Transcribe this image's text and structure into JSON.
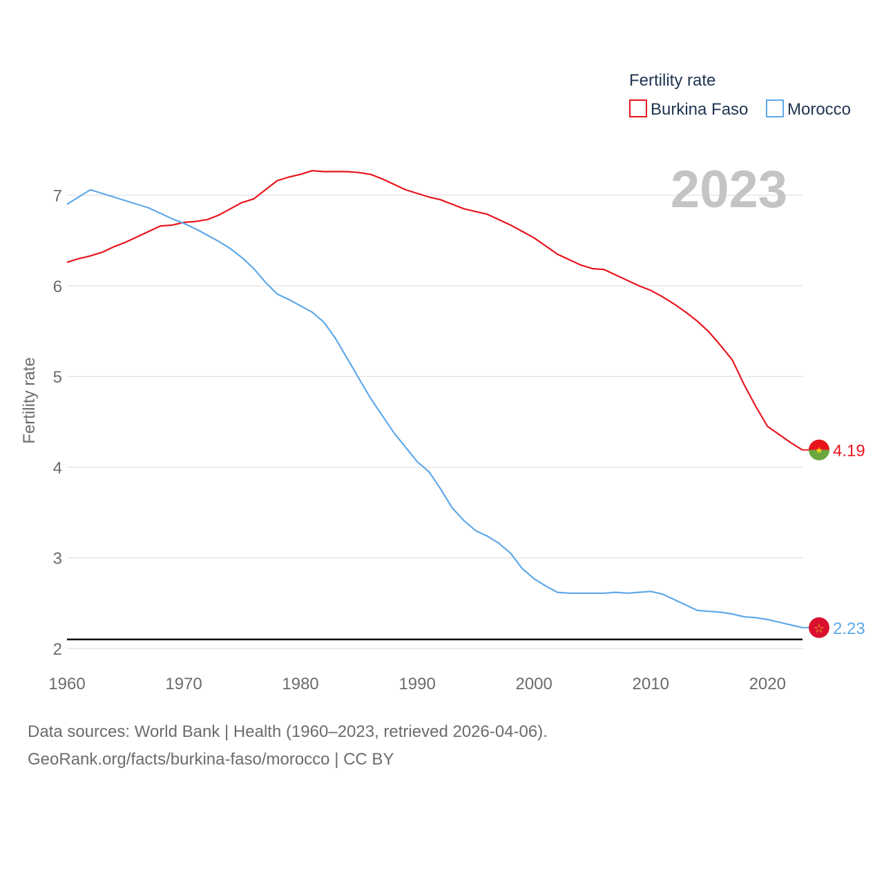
{
  "chart_data": {
    "type": "line",
    "ylabel": "Fertility rate",
    "xlim": [
      1960,
      2023
    ],
    "ylim": [
      2,
      7.5
    ],
    "x_ticks": [
      1960,
      1970,
      1980,
      1990,
      2000,
      2010,
      2020
    ],
    "y_ticks": [
      2,
      3,
      4,
      5,
      6,
      7
    ],
    "year_watermark": "2023",
    "legend": {
      "title": "Fertility rate",
      "position": "top-right"
    },
    "reference_line": 2.1,
    "colors": {
      "Burkina Faso": "#e8141c",
      "Morocco": "#5ea8e8"
    },
    "x": [
      1960,
      1961,
      1962,
      1963,
      1964,
      1965,
      1966,
      1967,
      1968,
      1969,
      1970,
      1971,
      1972,
      1973,
      1974,
      1975,
      1976,
      1977,
      1978,
      1979,
      1980,
      1981,
      1982,
      1983,
      1984,
      1985,
      1986,
      1987,
      1988,
      1989,
      1990,
      1991,
      1992,
      1993,
      1994,
      1995,
      1996,
      1997,
      1998,
      1999,
      2000,
      2001,
      2002,
      2003,
      2004,
      2005,
      2006,
      2007,
      2008,
      2009,
      2010,
      2011,
      2012,
      2013,
      2014,
      2015,
      2016,
      2017,
      2018,
      2019,
      2020,
      2021,
      2022,
      2023
    ],
    "series": [
      {
        "name": "Burkina Faso",
        "end_label": "4.19",
        "values": [
          6.26,
          6.3,
          6.33,
          6.37,
          6.43,
          6.48,
          6.54,
          6.6,
          6.66,
          6.67,
          6.7,
          6.71,
          6.73,
          6.78,
          6.85,
          6.92,
          6.96,
          7.06,
          7.16,
          7.2,
          7.23,
          7.27,
          7.26,
          7.26,
          7.26,
          7.25,
          7.23,
          7.18,
          7.12,
          7.06,
          7.02,
          6.98,
          6.95,
          6.9,
          6.85,
          6.82,
          6.79,
          6.73,
          6.67,
          6.6,
          6.53,
          6.44,
          6.35,
          6.29,
          6.23,
          6.19,
          6.18,
          6.12,
          6.06,
          6.0,
          5.95,
          5.88,
          5.8,
          5.71,
          5.61,
          5.49,
          5.34,
          5.18,
          4.91,
          4.67,
          4.45,
          4.36,
          4.27,
          4.19
        ]
      },
      {
        "name": "Morocco",
        "end_label": "2.23",
        "values": [
          6.9,
          6.98,
          7.06,
          7.02,
          6.98,
          6.94,
          6.9,
          6.86,
          6.8,
          6.74,
          6.69,
          6.63,
          6.56,
          6.49,
          6.41,
          6.31,
          6.19,
          6.04,
          5.91,
          5.85,
          5.78,
          5.71,
          5.6,
          5.42,
          5.2,
          4.98,
          4.76,
          4.57,
          4.38,
          4.22,
          4.06,
          3.95,
          3.76,
          3.55,
          3.41,
          3.3,
          3.24,
          3.16,
          3.05,
          2.88,
          2.77,
          2.69,
          2.62,
          2.61,
          2.61,
          2.61,
          2.61,
          2.62,
          2.61,
          2.62,
          2.63,
          2.6,
          2.54,
          2.48,
          2.42,
          2.41,
          2.4,
          2.38,
          2.35,
          2.34,
          2.32,
          2.29,
          2.26,
          2.23
        ]
      }
    ],
    "footer_line1": "Data sources: World Bank | Health (1960–2023, retrieved 2026-04-06).",
    "footer_line2": "GeoRank.org/facts/burkina-faso/morocco | CC BY"
  }
}
